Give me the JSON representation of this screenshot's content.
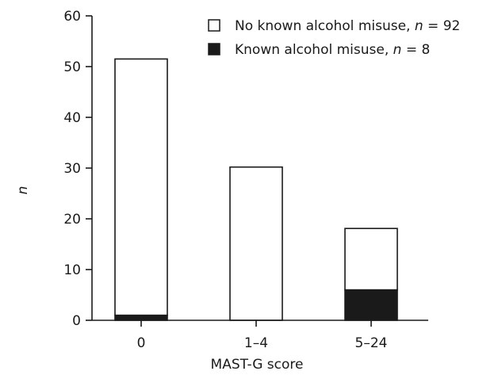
{
  "chart_data": {
    "type": "bar",
    "stacked": true,
    "categories": [
      "0",
      "1–4",
      "5–24"
    ],
    "series": [
      {
        "name": "Known alcohol misuse",
        "n": "8",
        "color": "#1a1a1a",
        "values": [
          1,
          0,
          6
        ]
      },
      {
        "name": "No known alcohol misuse",
        "n": "92",
        "color": "#ffffff",
        "values": [
          50.5,
          30.2,
          12.1
        ]
      }
    ],
    "xlabel": "MAST-G score",
    "ylabel": "n",
    "ylim": [
      0,
      60
    ],
    "yticks": [
      0,
      10,
      20,
      30,
      40,
      50,
      60
    ],
    "grid": false,
    "legend_position": "top-right"
  }
}
